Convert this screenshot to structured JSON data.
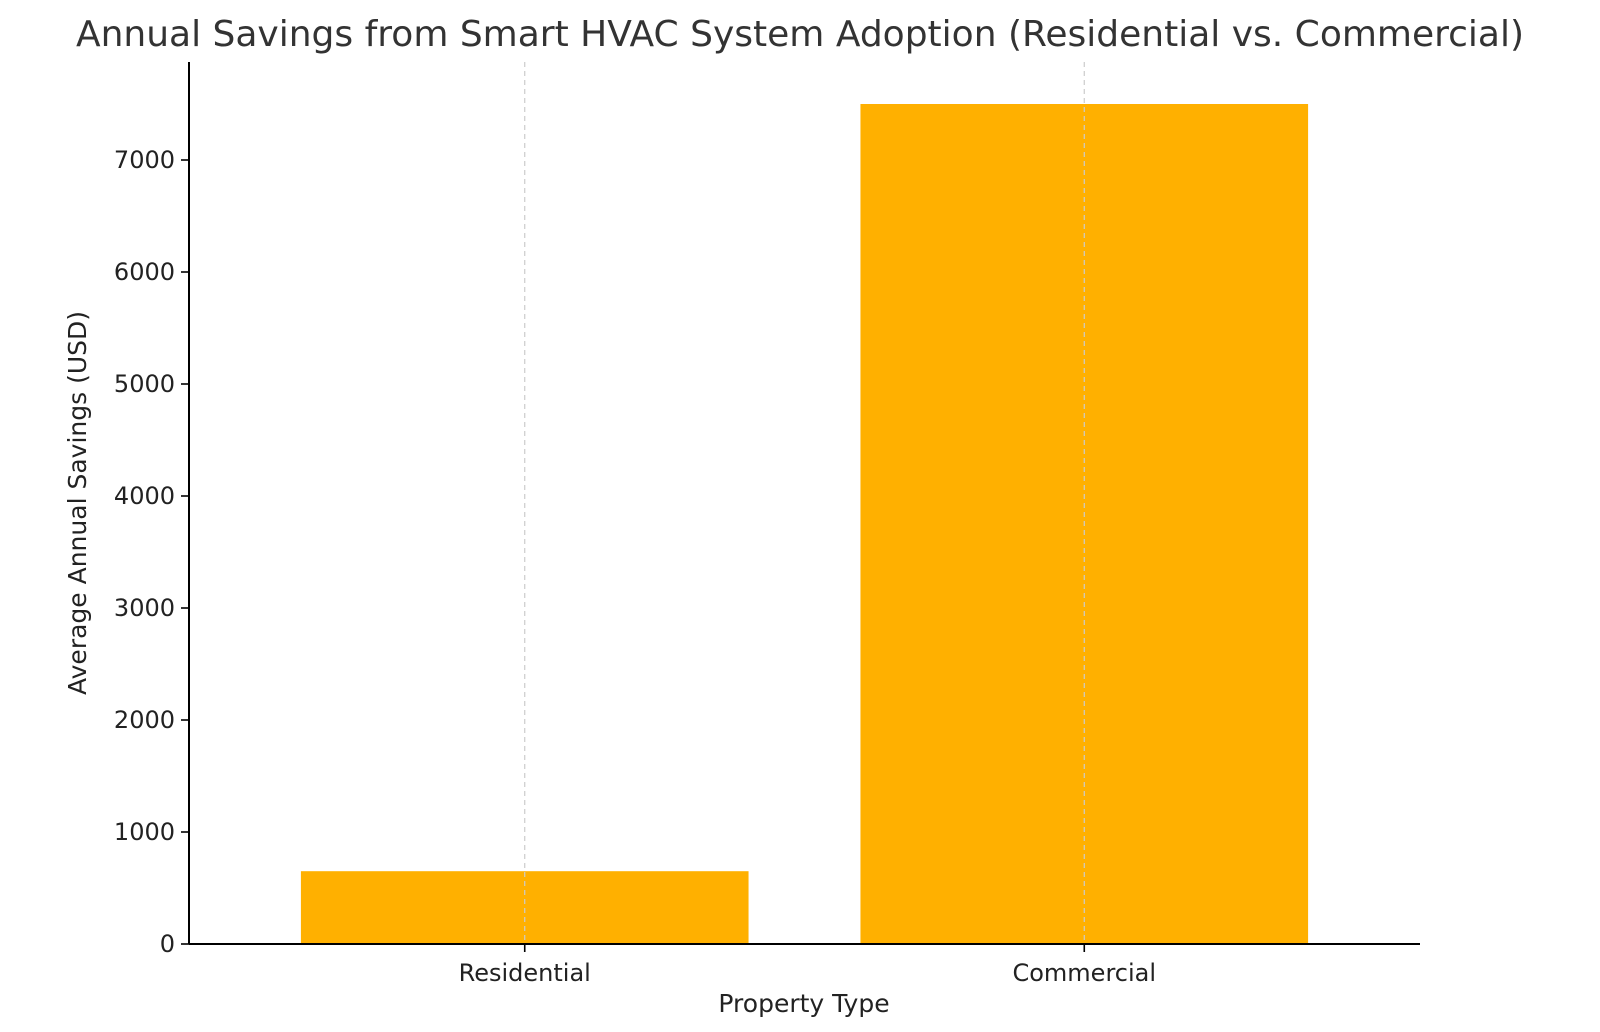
{
  "chart_data": {
    "type": "bar",
    "title": "Annual Savings from Smart HVAC System Adoption (Residential vs. Commercial)",
    "xlabel": "Property Type",
    "ylabel": "Average Annual Savings (USD)",
    "categories": [
      "Residential",
      "Commercial"
    ],
    "values": [
      650,
      7500
    ],
    "ylim": [
      0,
      7875
    ],
    "yticks": [
      0,
      1000,
      2000,
      3000,
      4000,
      5000,
      6000,
      7000
    ],
    "grid": "x-axis dashed",
    "bar_color": "#FFB000",
    "grid_color": "#cccccc"
  }
}
